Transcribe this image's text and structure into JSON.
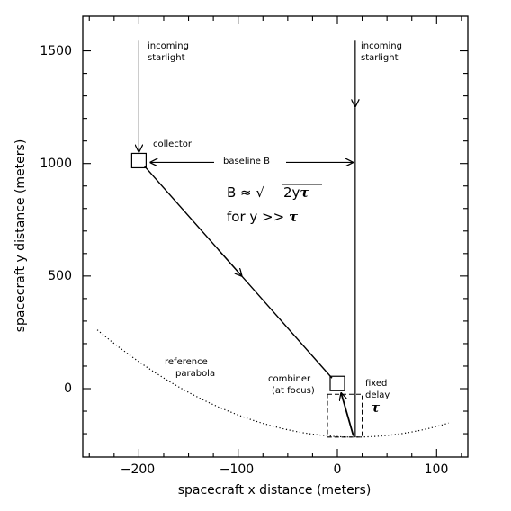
{
  "chart_data": {
    "type": "diagram",
    "xlabel": "spacecraft x distance (meters)",
    "ylabel": "spacecraft y distance (meters)",
    "xlim": [
      -260,
      130
    ],
    "ylim": [
      -220,
      1560
    ],
    "xticks": [
      -200,
      -100,
      0,
      100
    ],
    "yticks": [
      0,
      500,
      1000,
      1500
    ],
    "reference_parabola": {
      "tau": 19,
      "x_from": -242,
      "x_to": 113
    },
    "collector": {
      "x": -200,
      "y": 1013
    },
    "combiner": {
      "x": 0,
      "y": 23
    },
    "second_collector_x": 18,
    "starlight_top_y": 1545,
    "baseline_y": 1005,
    "delay_box": {
      "x0": -10,
      "x1": 25,
      "y0": -215,
      "y1": -25
    }
  },
  "labels": {
    "incoming_left": [
      "incoming",
      "starlight"
    ],
    "incoming_right": [
      "incoming",
      "starlight"
    ],
    "collector": "collector",
    "baseline": "baseline B",
    "formula_line1_prefix": "B ≈ ",
    "formula_sqrt_symbol": "√",
    "formula_radicand": "2y",
    "formula_tau": "τ",
    "formula_line2_prefix": "for y >> ",
    "reference": [
      "reference",
      "parabola"
    ],
    "combiner": [
      "combiner",
      "(at focus)"
    ],
    "fixed_delay": [
      "fixed",
      "delay"
    ]
  },
  "tick_labels": {
    "x": [
      "−200",
      "−100",
      "0",
      "100"
    ],
    "y": [
      "0",
      "500",
      "1000",
      "1500"
    ]
  }
}
